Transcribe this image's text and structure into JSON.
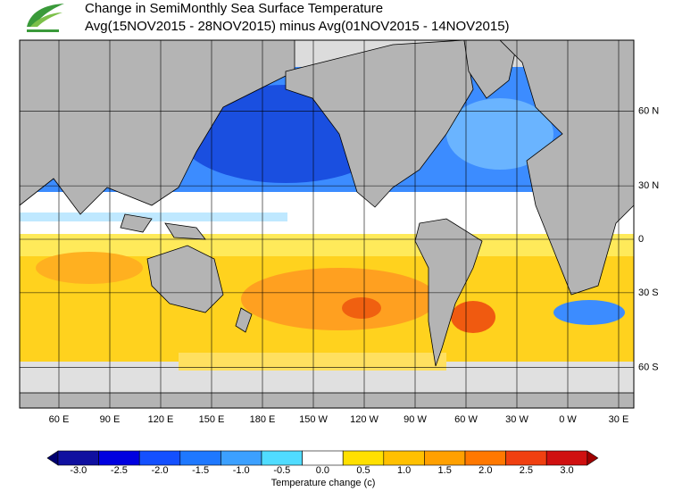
{
  "header": {
    "title": "Change in SemiMonthly Sea Surface Temperature",
    "subtitle": "Avg(15NOV2015 - 28NOV2015) minus Avg(01NOV2015 - 14NOV2015)"
  },
  "map": {
    "lon_ticks": [
      {
        "value": 60,
        "label": "60 E"
      },
      {
        "value": 90,
        "label": "90 E"
      },
      {
        "value": 120,
        "label": "120 E"
      },
      {
        "value": 150,
        "label": "150 E"
      },
      {
        "value": 180,
        "label": "180 E"
      },
      {
        "value": -150,
        "label": "150 W"
      },
      {
        "value": -120,
        "label": "120 W"
      },
      {
        "value": -90,
        "label": "90 W"
      },
      {
        "value": -60,
        "label": "60 W"
      },
      {
        "value": -30,
        "label": "30 W"
      },
      {
        "value": 0,
        "label": "0 W"
      },
      {
        "value": 30,
        "label": "30 E"
      }
    ],
    "lat_ticks": [
      {
        "value": 60,
        "label": "60 N"
      },
      {
        "value": 30,
        "label": "30 N"
      },
      0,
      {
        "value": -30,
        "label": "30 S"
      },
      {
        "value": -60,
        "label": "60 S"
      }
    ]
  },
  "colorbar": {
    "label": "Temperature change  (c)",
    "ticks": [
      {
        "value": -3,
        "label": "-3.0"
      },
      {
        "value": -2.5,
        "label": "-2.5"
      },
      {
        "value": -2,
        "label": "-2.0"
      },
      {
        "value": -1.5,
        "label": "-1.5"
      },
      {
        "value": -1,
        "label": "-1.0"
      },
      {
        "value": -0.5,
        "label": "-0.5"
      },
      {
        "value": 0,
        "label": "0.0"
      },
      0.5,
      {
        "value": 1,
        "label": "1.0"
      },
      1.5,
      {
        "value": 2,
        "label": "2.0"
      },
      2.5,
      {
        "value": 3,
        "label": "3.0"
      }
    ],
    "colors": [
      "#1010a0",
      "#0000e0",
      "#1450ff",
      "#1e78ff",
      "#3ca0ff",
      "#50dcff",
      "#ffffff",
      "#ffe000",
      "#ffc000",
      "#ffa000",
      "#ff7800",
      "#f04010",
      "#d01010"
    ],
    "under_color": "#000070",
    "over_color": "#a00000"
  }
}
